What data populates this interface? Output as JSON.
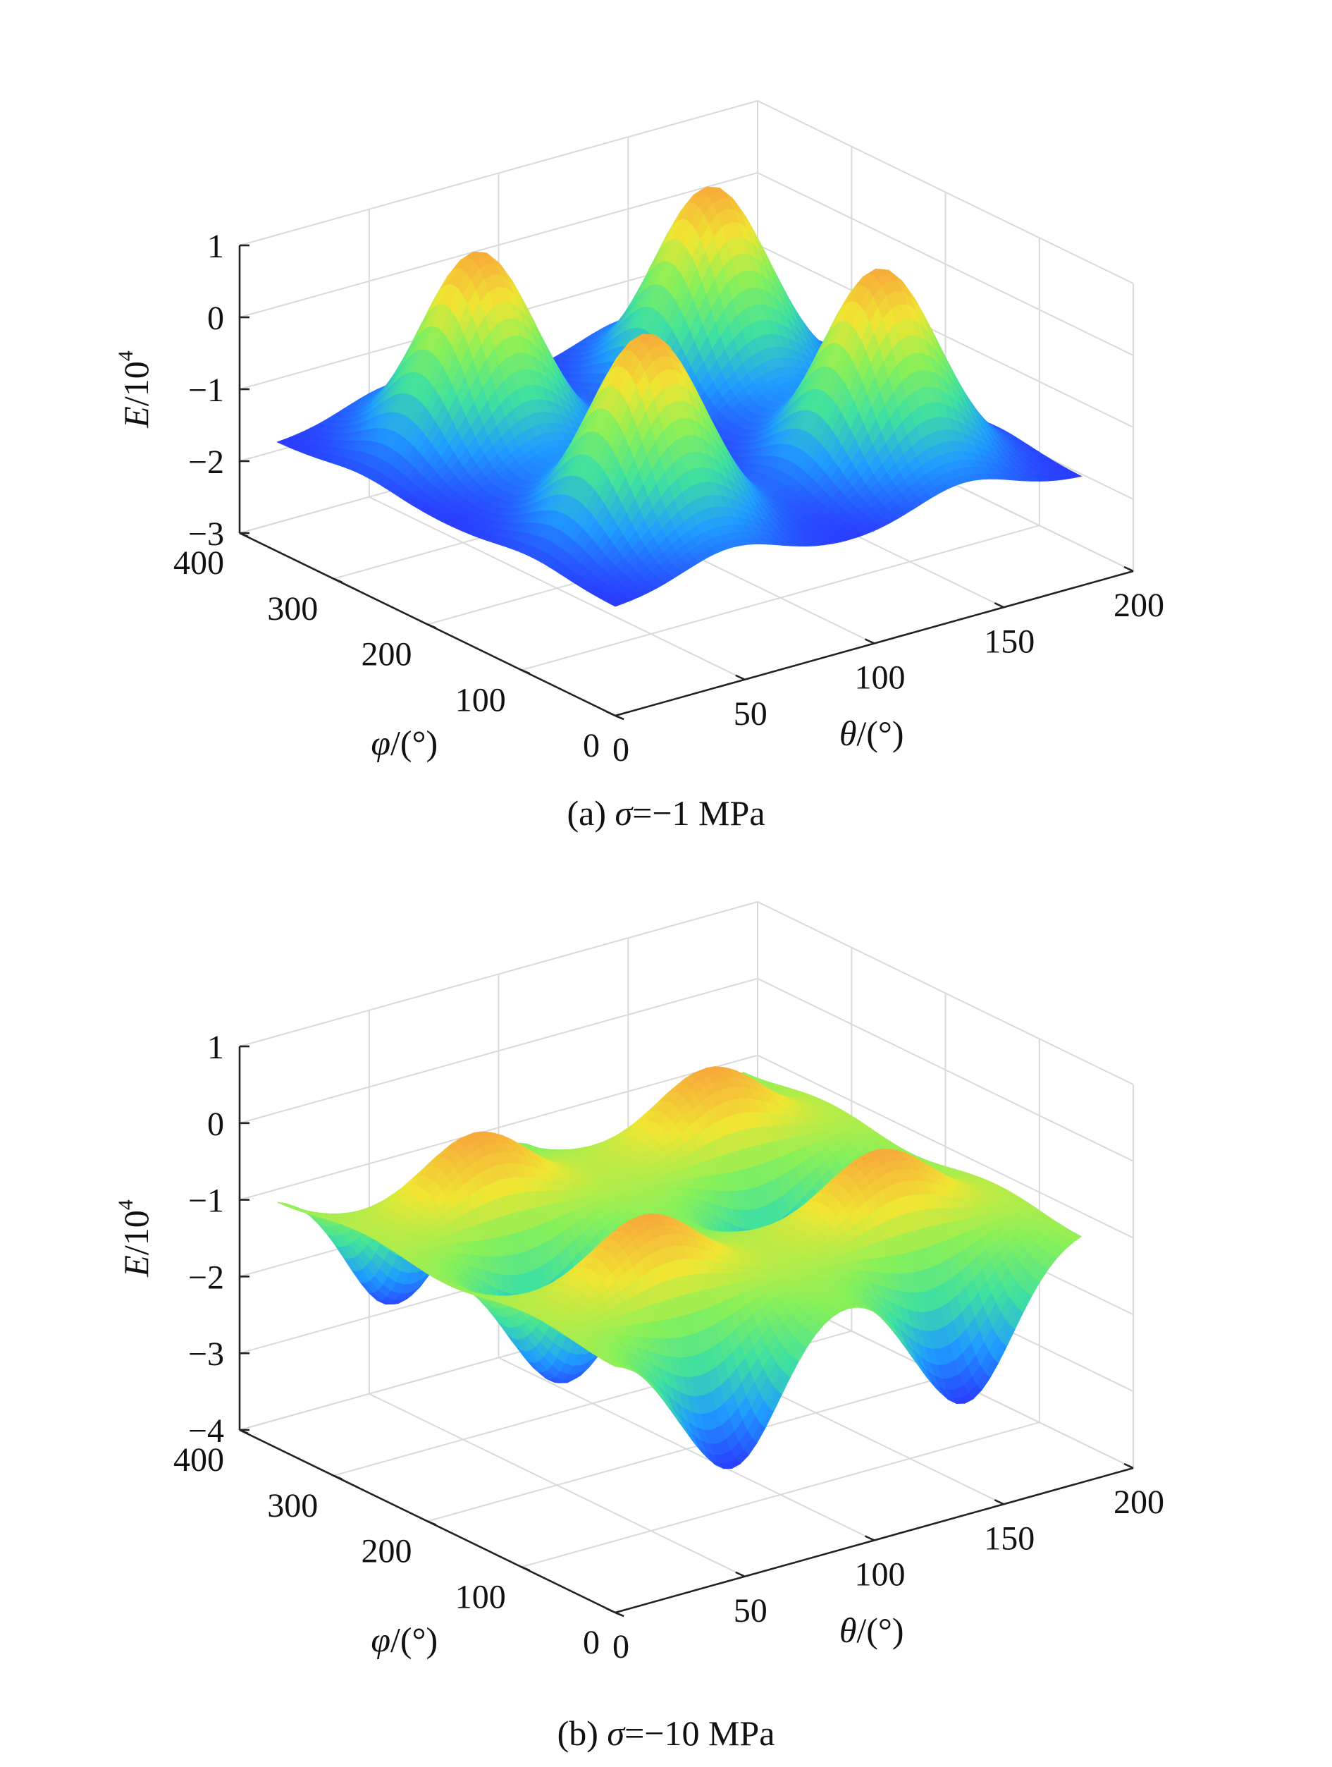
{
  "chart_data": [
    {
      "id": "a",
      "type": "surface3d",
      "caption_prefix": "(a) ",
      "caption_symbol": "σ",
      "caption_value": "=−1 MPa",
      "x_axis": {
        "label": "θ/(°)",
        "label_symbol": "θ",
        "label_unit": "/(°)",
        "range": [
          0,
          200
        ],
        "ticks": [
          "0",
          "50",
          "100",
          "150",
          "200"
        ]
      },
      "y_axis": {
        "label": "φ/(°)",
        "label_symbol": "φ",
        "label_unit": "/(°)",
        "range": [
          0,
          400
        ],
        "ticks": [
          "0",
          "100",
          "200",
          "300",
          "400"
        ]
      },
      "z_axis": {
        "label": "E/10^4",
        "label_symbol": "E",
        "label_unit": "/10",
        "label_exp": "4",
        "range": [
          -3,
          1
        ],
        "ticks": [
          "−3",
          "−2",
          "−1",
          "0",
          "1"
        ]
      },
      "surface": {
        "baseline": -1.5,
        "peaks": [
          [
            45,
            90,
            1.25
          ],
          [
            45,
            270,
            1.25
          ],
          [
            135,
            90,
            1.25
          ],
          [
            135,
            270,
            1.25
          ]
        ],
        "valleys": [
          [
            45,
            0,
            -1.25
          ],
          [
            45,
            180,
            -1.25
          ],
          [
            45,
            360,
            -1.25
          ],
          [
            135,
            0,
            -1.25
          ],
          [
            135,
            180,
            -1.25
          ],
          [
            135,
            360,
            -1.25
          ]
        ],
        "colormap": [
          "#2a3cff",
          "#1f9dff",
          "#3fe0a0",
          "#86f05a",
          "#f0e632",
          "#f7a93a"
        ]
      }
    },
    {
      "id": "b",
      "type": "surface3d",
      "caption_prefix": "(b) ",
      "caption_symbol": "σ",
      "caption_value": "=−10 MPa",
      "x_axis": {
        "label": "θ/(°)",
        "label_symbol": "θ",
        "label_unit": "/(°)",
        "range": [
          0,
          200
        ],
        "ticks": [
          "0",
          "50",
          "100",
          "150",
          "200"
        ]
      },
      "y_axis": {
        "label": "φ/(°)",
        "label_symbol": "φ",
        "label_unit": "/(°)",
        "range": [
          0,
          400
        ],
        "ticks": [
          "0",
          "100",
          "200",
          "300",
          "400"
        ]
      },
      "z_axis": {
        "label": "E/10^4",
        "label_symbol": "E",
        "label_unit": "/10",
        "label_exp": "4",
        "range": [
          -4,
          1
        ],
        "ticks": [
          "−4",
          "−3",
          "−2",
          "−1",
          "0",
          "1"
        ]
      },
      "surface": {
        "baseline": -0.7,
        "peaks": [
          [
            45,
            90,
            0.4
          ],
          [
            45,
            270,
            0.4
          ],
          [
            135,
            90,
            0.4
          ],
          [
            135,
            270,
            0.4
          ]
        ],
        "valleys": [
          [
            45,
            0,
            -2.6
          ],
          [
            45,
            180,
            -2.6
          ],
          [
            45,
            360,
            -2.6
          ],
          [
            135,
            0,
            -2.6
          ],
          [
            135,
            180,
            -2.6
          ],
          [
            135,
            360,
            -2.6
          ]
        ],
        "colormap": [
          "#2a3cff",
          "#1f9dff",
          "#3fe0a0",
          "#86f05a",
          "#f0e632",
          "#f7a93a"
        ]
      }
    }
  ]
}
